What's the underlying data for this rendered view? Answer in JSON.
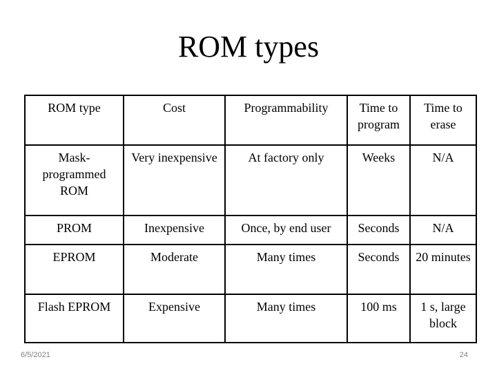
{
  "slide": {
    "title": "ROM types",
    "date": "6/5/2021",
    "page_number": "24"
  },
  "table": {
    "headers": [
      "ROM type",
      "Cost",
      "Programmability",
      "Time to program",
      "Time to erase"
    ],
    "rows": [
      [
        "Mask-programmed ROM",
        "Very inexpensive",
        "At factory only",
        "Weeks",
        "N/A"
      ],
      [
        "PROM",
        "Inexpensive",
        "Once, by end user",
        "Seconds",
        "N/A"
      ],
      [
        "EPROM",
        "Moderate",
        "Many times",
        "Seconds",
        "20 minutes"
      ],
      [
        "Flash EPROM",
        "Expensive",
        "Many times",
        "100 ms",
        "1 s, large block"
      ]
    ]
  }
}
